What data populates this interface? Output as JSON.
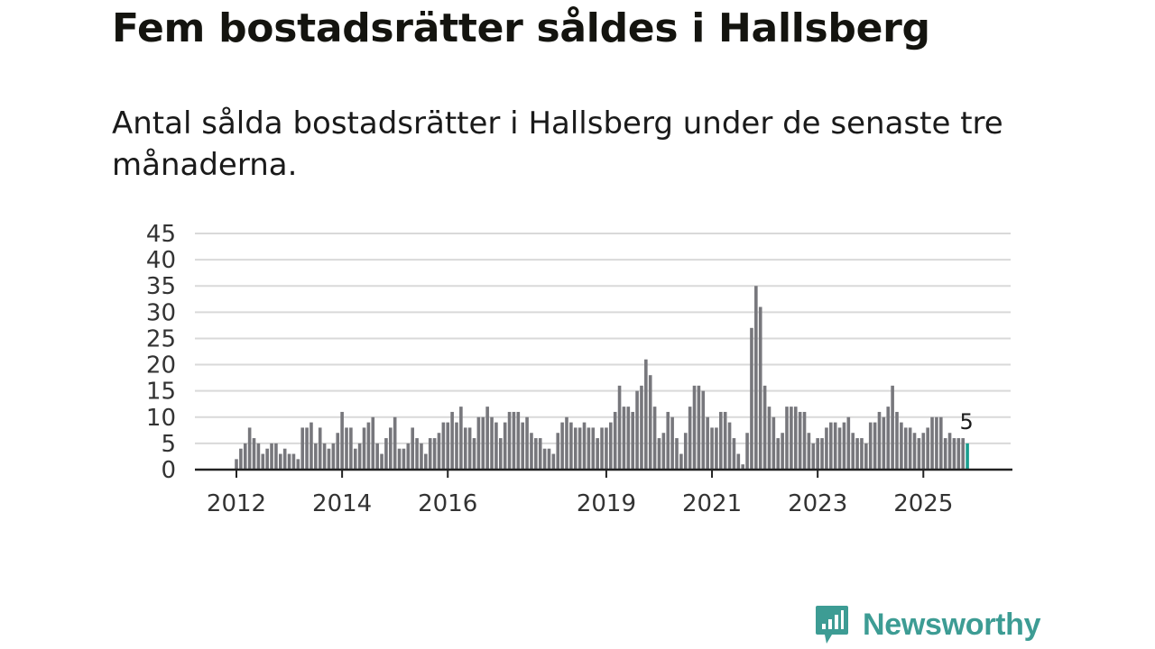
{
  "title": "Fem bostadsrätter såldes i Hallsberg",
  "subtitle": "Antal sålda bostadsrätter i Hallsberg under de senaste tre månaderna.",
  "brand": {
    "name": "Newsworthy",
    "color": "#3d9c94"
  },
  "colors": {
    "bar": "#77777c",
    "highlight": "#1a9e8f",
    "grid": "#d9d9d9"
  },
  "chart_data": {
    "type": "bar",
    "title": "Fem bostadsrätter såldes i Hallsberg",
    "xlabel": "",
    "ylabel": "",
    "ylim": [
      0,
      45
    ],
    "yticks": [
      0,
      5,
      10,
      15,
      20,
      25,
      30,
      35,
      40,
      45
    ],
    "grid": true,
    "start_month": "2012-01",
    "xtick_labels": [
      {
        "label": "2012",
        "month_index": 0
      },
      {
        "label": "2014",
        "month_index": 24
      },
      {
        "label": "2016",
        "month_index": 48
      },
      {
        "label": "2019",
        "month_index": 84
      },
      {
        "label": "2021",
        "month_index": 108
      },
      {
        "label": "2023",
        "month_index": 132
      },
      {
        "label": "2025",
        "month_index": 156
      }
    ],
    "values": [
      2,
      4,
      5,
      8,
      6,
      5,
      3,
      4,
      5,
      5,
      3,
      4,
      3,
      3,
      2,
      8,
      8,
      9,
      5,
      8,
      5,
      4,
      5,
      7,
      11,
      8,
      8,
      4,
      5,
      8,
      9,
      10,
      5,
      3,
      6,
      8,
      10,
      4,
      4,
      5,
      8,
      6,
      5,
      3,
      6,
      6,
      7,
      9,
      9,
      11,
      9,
      12,
      8,
      8,
      6,
      10,
      10,
      12,
      10,
      9,
      6,
      9,
      11,
      11,
      11,
      9,
      10,
      7,
      6,
      6,
      4,
      4,
      3,
      7,
      9,
      10,
      9,
      8,
      8,
      9,
      8,
      8,
      6,
      8,
      8,
      9,
      11,
      16,
      12,
      12,
      11,
      15,
      16,
      21,
      18,
      12,
      6,
      7,
      11,
      10,
      6,
      3,
      7,
      12,
      16,
      16,
      15,
      10,
      8,
      8,
      11,
      11,
      9,
      6,
      3,
      1,
      7,
      27,
      35,
      31,
      16,
      12,
      10,
      6,
      7,
      12,
      12,
      12,
      11,
      11,
      7,
      5,
      6,
      6,
      8,
      9,
      9,
      8,
      9,
      10,
      7,
      6,
      6,
      5,
      9,
      9,
      11,
      10,
      12,
      16,
      11,
      9,
      8,
      8,
      7,
      6,
      7,
      8,
      10,
      10,
      10,
      6,
      7,
      6,
      6,
      6,
      5
    ],
    "highlight_last": true,
    "annotation": {
      "text": "5",
      "target": "last"
    }
  }
}
